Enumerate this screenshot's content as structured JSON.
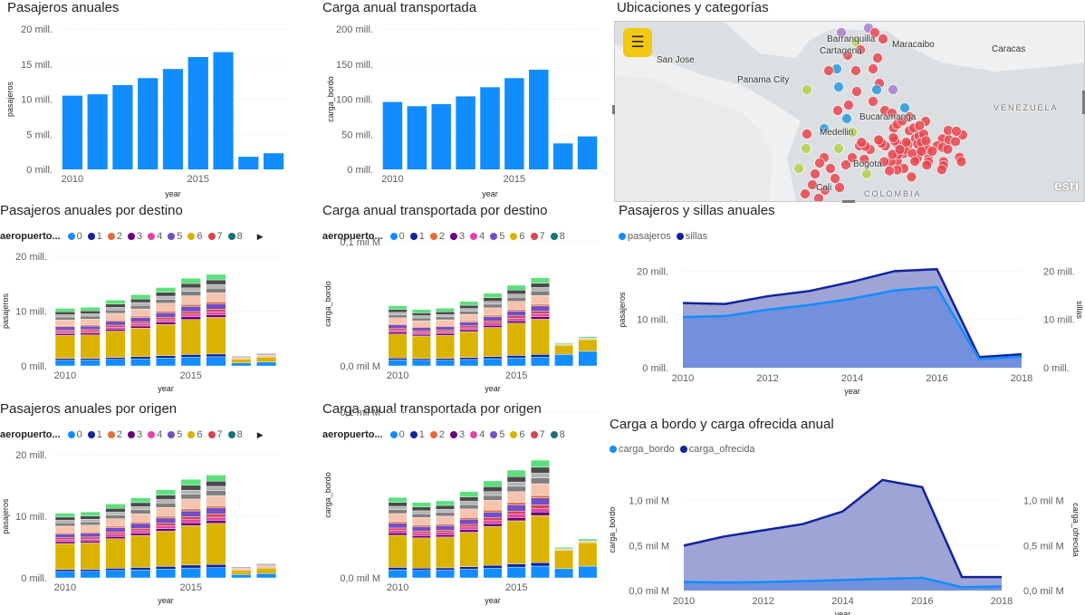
{
  "colors": {
    "accent": "#118DFF",
    "dark_series": "#12239E",
    "area_fill": "#7D86C8",
    "map_point_red": "#E8464F",
    "map_button": "#F2C811"
  },
  "visuals": {
    "pasajeros_anuales": {
      "title": "Pasajeros anuales",
      "chart_data": {
        "type": "bar",
        "title": "Pasajeros anuales",
        "xlabel": "year",
        "ylabel": "pasajeros",
        "categories": [
          2010,
          2011,
          2012,
          2013,
          2014,
          2015,
          2016,
          2017,
          2018
        ],
        "values": [
          10.5,
          10.7,
          12.0,
          13.0,
          14.3,
          16.0,
          16.7,
          1.8,
          2.3
        ],
        "value_unit": "millones",
        "y_ticks": [
          "0 mill.",
          "5 mill.",
          "10 mill.",
          "15 mill.",
          "20 mill."
        ],
        "x_ticks": [
          "2010",
          "2015"
        ],
        "ylim": [
          0,
          20
        ],
        "color": "#118DFF"
      }
    },
    "carga_anual": {
      "title": "Carga anual transportada",
      "chart_data": {
        "type": "bar",
        "title": "Carga anual transportada",
        "xlabel": "year",
        "ylabel": "carga_bordo",
        "categories": [
          2010,
          2011,
          2012,
          2013,
          2014,
          2015,
          2016,
          2017,
          2018
        ],
        "values": [
          96,
          90,
          93,
          104,
          117,
          130,
          142,
          37,
          47
        ],
        "value_unit": "millones",
        "y_ticks": [
          "0 mill.",
          "50 mill.",
          "100 mill.",
          "150 mill.",
          "200 mill."
        ],
        "x_ticks": [
          "2010",
          "2015"
        ],
        "ylim": [
          0,
          200
        ],
        "color": "#118DFF"
      }
    },
    "mapa": {
      "title": "Ubicaciones y categorías",
      "labels": {
        "barranquilla": "Barranquilla",
        "cartagena": "Cartagena",
        "maracaibo": "Maracaibo",
        "caracas": "Caracas",
        "san_jose": "San Jose",
        "panama_city": "Panama City",
        "venezuela": "VENEZUELA",
        "bucaramanga": "Bucaramanga",
        "medellin": "Medellin",
        "bogota": "Bogota",
        "cali": "Cali",
        "colombia": "COLOMBIA"
      },
      "menu_icon": "menu-icon",
      "watermark": "esri"
    },
    "pasajeros_destino": {
      "title": "Pasajeros anuales por destino",
      "legend": {
        "title": "aeropuerto...",
        "items": [
          {
            "label": "0",
            "color": "#118DFF"
          },
          {
            "label": "1",
            "color": "#12239E"
          },
          {
            "label": "2",
            "color": "#E66C37"
          },
          {
            "label": "3",
            "color": "#6B007B"
          },
          {
            "label": "4",
            "color": "#E044A7"
          },
          {
            "label": "5",
            "color": "#744EC2"
          },
          {
            "label": "6",
            "color": "#D9B300"
          },
          {
            "label": "7",
            "color": "#D64550"
          },
          {
            "label": "8",
            "color": "#197278"
          }
        ]
      },
      "chart_data": {
        "type": "stacked-bar",
        "title": "Pasajeros anuales por destino",
        "xlabel": "year",
        "ylabel": "pasajeros",
        "categories": [
          2010,
          2011,
          2012,
          2013,
          2014,
          2015,
          2016,
          2017,
          2018
        ],
        "totals": [
          10.5,
          10.7,
          12.0,
          13.0,
          14.3,
          16.0,
          16.7,
          1.8,
          2.3
        ],
        "value_unit": "millones",
        "y_ticks": [
          "0 mill.",
          "10 mill.",
          "20 mill."
        ],
        "x_ticks": [
          "2010",
          "2015"
        ],
        "ylim": [
          0,
          20
        ]
      }
    },
    "carga_destino": {
      "title": "Carga anual transportada por destino",
      "legend": {
        "title": "aeropuerto...",
        "items": [
          {
            "label": "0",
            "color": "#118DFF"
          },
          {
            "label": "1",
            "color": "#12239E"
          },
          {
            "label": "2",
            "color": "#E66C37"
          },
          {
            "label": "3",
            "color": "#6B007B"
          },
          {
            "label": "4",
            "color": "#E044A7"
          },
          {
            "label": "5",
            "color": "#744EC2"
          },
          {
            "label": "6",
            "color": "#D9B300"
          },
          {
            "label": "7",
            "color": "#D64550"
          },
          {
            "label": "8",
            "color": "#197278"
          }
        ]
      },
      "chart_data": {
        "type": "stacked-bar",
        "title": "Carga anual transportada por destino",
        "xlabel": "year",
        "ylabel": "carga_bordo",
        "categories": [
          2010,
          2011,
          2012,
          2013,
          2014,
          2015,
          2016,
          2017,
          2018
        ],
        "totals": [
          0.097,
          0.091,
          0.093,
          0.104,
          0.117,
          0.13,
          0.142,
          0.037,
          0.047
        ],
        "value_unit": "mil M",
        "y_ticks": [
          "0,0 mil M",
          "0,1 mil M"
        ],
        "x_ticks": [
          "2010",
          "2015"
        ],
        "ylim": [
          0,
          0.2
        ]
      }
    },
    "pasajeros_sillas": {
      "title": "Pasajeros y sillas anuales",
      "legend": {
        "items": [
          {
            "label": "pasajeros",
            "color": "#118DFF"
          },
          {
            "label": "sillas",
            "color": "#12239E"
          }
        ]
      },
      "chart_data": {
        "type": "area",
        "title": "Pasajeros y sillas anuales",
        "xlabel": "year",
        "ylabel": "pasajeros",
        "ylabel_right": "sillas",
        "x": [
          2010,
          2011,
          2012,
          2013,
          2014,
          2015,
          2016,
          2017,
          2018
        ],
        "series": [
          {
            "name": "pasajeros",
            "values": [
              10.5,
              10.7,
              12.0,
              13.0,
              14.3,
              16.0,
              16.7,
              1.8,
              2.3
            ]
          },
          {
            "name": "sillas",
            "values": [
              13.4,
              13.2,
              14.8,
              15.9,
              17.8,
              20.0,
              20.4,
              2.2,
              2.8
            ]
          }
        ],
        "value_unit": "millones",
        "y_ticks": [
          "0 mill.",
          "10 mill.",
          "20 mill."
        ],
        "y_ticks_right": [
          "0 mill.",
          "10 mill.",
          "20 mill."
        ],
        "x_ticks": [
          "2010",
          "2012",
          "2014",
          "2016",
          "2018"
        ],
        "ylim": [
          0,
          24
        ]
      }
    },
    "pasajeros_origen": {
      "title": "Pasajeros anuales por origen",
      "legend": {
        "title": "aeropuerto...",
        "items": [
          {
            "label": "0",
            "color": "#118DFF"
          },
          {
            "label": "1",
            "color": "#12239E"
          },
          {
            "label": "2",
            "color": "#E66C37"
          },
          {
            "label": "3",
            "color": "#6B007B"
          },
          {
            "label": "4",
            "color": "#E044A7"
          },
          {
            "label": "5",
            "color": "#744EC2"
          },
          {
            "label": "6",
            "color": "#D9B300"
          },
          {
            "label": "7",
            "color": "#D64550"
          },
          {
            "label": "8",
            "color": "#197278"
          }
        ]
      },
      "chart_data": {
        "type": "stacked-bar",
        "title": "Pasajeros anuales por origen",
        "xlabel": "year",
        "ylabel": "pasajeros",
        "categories": [
          2010,
          2011,
          2012,
          2013,
          2014,
          2015,
          2016,
          2017,
          2018
        ],
        "totals": [
          10.5,
          10.7,
          12.0,
          13.0,
          14.3,
          16.0,
          16.7,
          1.8,
          2.3
        ],
        "value_unit": "millones",
        "y_ticks": [
          "0 mill.",
          "10 mill.",
          "20 mill."
        ],
        "x_ticks": [
          "2010",
          "2015"
        ],
        "ylim": [
          0,
          20
        ]
      }
    },
    "carga_origen": {
      "title": "Carga anual transportada por origen",
      "legend": {
        "title": "aeropuerto...",
        "items": [
          {
            "label": "0",
            "color": "#118DFF"
          },
          {
            "label": "1",
            "color": "#12239E"
          },
          {
            "label": "2",
            "color": "#E66C37"
          },
          {
            "label": "3",
            "color": "#6B007B"
          },
          {
            "label": "4",
            "color": "#E044A7"
          },
          {
            "label": "5",
            "color": "#744EC2"
          },
          {
            "label": "6",
            "color": "#D9B300"
          },
          {
            "label": "7",
            "color": "#D64550"
          },
          {
            "label": "8",
            "color": "#197278"
          }
        ]
      },
      "chart_data": {
        "type": "stacked-bar",
        "title": "Carga anual transportada por origen",
        "xlabel": "year",
        "ylabel": "carga_bordo",
        "categories": [
          2010,
          2011,
          2012,
          2013,
          2014,
          2015,
          2016,
          2017,
          2018
        ],
        "totals": [
          0.097,
          0.091,
          0.093,
          0.104,
          0.117,
          0.13,
          0.142,
          0.037,
          0.047
        ],
        "value_unit": "mil M",
        "y_ticks": [
          "0,0 mil M",
          "0,1 mil M"
        ],
        "x_ticks": [
          "2010",
          "2015"
        ],
        "ylim": [
          0,
          0.2
        ]
      }
    },
    "carga_bordo_ofrecida": {
      "title": "Carga a bordo y carga ofrecida anual",
      "legend": {
        "items": [
          {
            "label": "carga_bordo",
            "color": "#118DFF"
          },
          {
            "label": "carga_ofrecida",
            "color": "#12239E"
          }
        ]
      },
      "chart_data": {
        "type": "area",
        "title": "Carga a bordo y carga ofrecida anual",
        "xlabel": "year",
        "ylabel": "carga_bordo",
        "ylabel_right": "carga_ofrecida",
        "x": [
          2010,
          2011,
          2012,
          2013,
          2014,
          2015,
          2016,
          2017,
          2018
        ],
        "series": [
          {
            "name": "carga_bordo",
            "values": [
              0.096,
              0.09,
              0.093,
              0.104,
              0.117,
              0.13,
              0.142,
              0.037,
              0.047
            ]
          },
          {
            "name": "carga_ofrecida",
            "values": [
              0.5,
              0.6,
              0.67,
              0.74,
              0.88,
              1.23,
              1.15,
              0.15,
              0.15
            ]
          }
        ],
        "value_unit": "mil M",
        "y_ticks": [
          "0,0 mil M",
          "0,5 mil M",
          "1,0 mil M"
        ],
        "y_ticks_right": [
          "0,0 mil M",
          "0,5 mil M",
          "1,0 mil M"
        ],
        "x_ticks": [
          "2010",
          "2012",
          "2014",
          "2016",
          "2018"
        ],
        "ylim": [
          0,
          1.35
        ]
      }
    }
  }
}
